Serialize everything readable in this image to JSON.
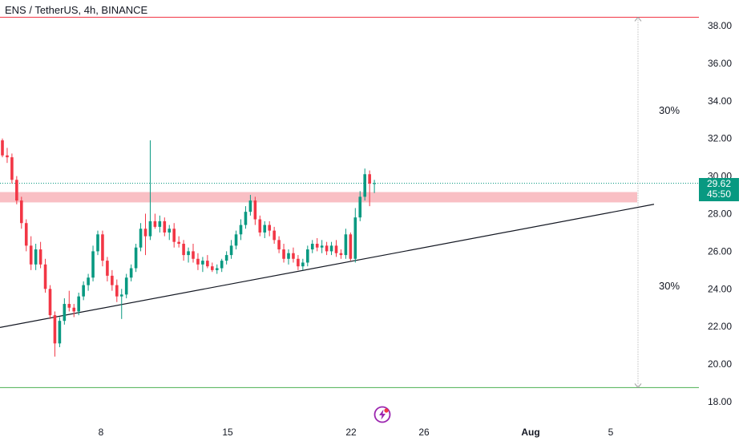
{
  "header": {
    "title": "ENS / TetherUS, 4h, BINANCE"
  },
  "price_tag": {
    "price": "29.62",
    "countdown": "45:50"
  },
  "annotations": {
    "upper_pct": "30%",
    "lower_pct": "30%"
  },
  "colors": {
    "up": "#089981",
    "down": "#f23645",
    "zone": "#f7a9b0",
    "upper_line": "#f23645",
    "lower_line": "#4caf50",
    "dotted": "#9e9e9e"
  },
  "chart_data": {
    "type": "candlestick",
    "title": "ENS / TetherUS, 4h, BINANCE",
    "ylim": [
      17.5,
      39.3
    ],
    "y_ticks": [
      "18.00",
      "20.00",
      "22.00",
      "24.00",
      "26.00",
      "28.00",
      "30.00",
      "32.00",
      "34.00",
      "36.00",
      "38.00"
    ],
    "x_ticks": [
      "8",
      "15",
      "22",
      "26",
      "Aug",
      "5"
    ],
    "current_price": 29.62,
    "levels": {
      "upper": 38.45,
      "lower": 18.75
    },
    "resistance_zone": [
      28.6,
      29.15
    ],
    "trendline": {
      "from": [
        0,
        21.95
      ],
      "to": [
        816,
        28.5
      ]
    },
    "candles": [
      [
        31.9,
        32.0,
        31.0,
        31.1
      ],
      [
        31.1,
        31.5,
        30.7,
        31.0
      ],
      [
        31.0,
        31.2,
        29.6,
        29.8
      ],
      [
        29.8,
        30.0,
        28.5,
        28.7
      ],
      [
        28.7,
        28.9,
        27.2,
        27.5
      ],
      [
        27.5,
        27.7,
        26.0,
        26.3
      ],
      [
        26.3,
        26.8,
        25.0,
        25.3
      ],
      [
        25.3,
        26.4,
        25.0,
        26.1
      ],
      [
        26.1,
        26.5,
        25.1,
        25.3
      ],
      [
        25.3,
        25.6,
        23.8,
        24.0
      ],
      [
        24.0,
        24.2,
        22.4,
        22.6
      ],
      [
        22.6,
        22.8,
        20.4,
        21.1
      ],
      [
        21.1,
        22.5,
        20.9,
        22.3
      ],
      [
        22.3,
        23.5,
        22.1,
        23.2
      ],
      [
        23.2,
        23.9,
        22.8,
        23.0
      ],
      [
        23.0,
        23.2,
        22.5,
        22.8
      ],
      [
        22.8,
        23.8,
        22.6,
        23.6
      ],
      [
        23.6,
        24.4,
        23.4,
        24.2
      ],
      [
        24.2,
        24.8,
        23.9,
        24.6
      ],
      [
        24.6,
        26.3,
        24.4,
        26.0
      ],
      [
        26.0,
        27.1,
        25.8,
        26.9
      ],
      [
        26.9,
        27.1,
        25.2,
        25.5
      ],
      [
        25.5,
        25.7,
        24.4,
        24.7
      ],
      [
        24.7,
        25.0,
        23.9,
        24.2
      ],
      [
        24.2,
        24.5,
        23.3,
        23.6
      ],
      [
        23.6,
        24.0,
        22.4,
        23.7
      ],
      [
        23.7,
        24.8,
        23.5,
        24.6
      ],
      [
        24.6,
        25.3,
        24.4,
        25.1
      ],
      [
        25.1,
        26.4,
        24.9,
        26.2
      ],
      [
        26.2,
        27.5,
        26.0,
        27.2
      ],
      [
        27.2,
        28.0,
        25.8,
        26.8
      ],
      [
        26.8,
        31.9,
        26.6,
        27.6
      ],
      [
        27.6,
        28.0,
        27.2,
        27.3
      ],
      [
        27.3,
        27.9,
        27.0,
        27.6
      ],
      [
        27.6,
        27.8,
        26.8,
        27.0
      ],
      [
        27.0,
        27.4,
        26.6,
        27.2
      ],
      [
        27.2,
        27.5,
        26.2,
        26.5
      ],
      [
        26.5,
        26.8,
        26.2,
        26.4
      ],
      [
        26.4,
        26.6,
        25.5,
        25.8
      ],
      [
        25.8,
        26.2,
        25.4,
        26.0
      ],
      [
        26.0,
        26.4,
        25.4,
        25.6
      ],
      [
        25.6,
        25.9,
        25.0,
        25.3
      ],
      [
        25.3,
        25.7,
        24.9,
        25.5
      ],
      [
        25.5,
        25.8,
        25.1,
        25.2
      ],
      [
        25.2,
        25.4,
        24.9,
        25.0
      ],
      [
        25.0,
        25.3,
        24.8,
        25.1
      ],
      [
        25.1,
        25.6,
        24.9,
        25.5
      ],
      [
        25.5,
        26.0,
        25.3,
        25.8
      ],
      [
        25.8,
        26.6,
        25.6,
        26.3
      ],
      [
        26.3,
        27.1,
        26.1,
        26.9
      ],
      [
        26.9,
        27.7,
        26.6,
        27.4
      ],
      [
        27.4,
        28.4,
        27.2,
        28.1
      ],
      [
        28.1,
        29.0,
        27.9,
        28.7
      ],
      [
        28.7,
        28.9,
        27.4,
        27.7
      ],
      [
        27.7,
        27.9,
        26.8,
        27.0
      ],
      [
        27.0,
        27.6,
        26.7,
        27.4
      ],
      [
        27.4,
        27.6,
        26.8,
        27.1
      ],
      [
        27.1,
        27.3,
        26.4,
        26.6
      ],
      [
        26.6,
        26.8,
        25.9,
        26.1
      ],
      [
        26.1,
        26.4,
        25.4,
        25.6
      ],
      [
        25.6,
        26.1,
        25.3,
        25.9
      ],
      [
        25.9,
        26.2,
        25.4,
        25.6
      ],
      [
        25.6,
        25.8,
        25.0,
        25.2
      ],
      [
        25.2,
        25.6,
        25.0,
        25.4
      ],
      [
        25.4,
        26.3,
        25.2,
        26.1
      ],
      [
        26.1,
        26.6,
        25.9,
        26.4
      ],
      [
        26.4,
        26.7,
        26.0,
        26.2
      ],
      [
        26.2,
        26.6,
        25.9,
        26.3
      ],
      [
        26.3,
        26.5,
        25.8,
        26.0
      ],
      [
        26.0,
        26.5,
        25.8,
        26.3
      ],
      [
        26.3,
        26.6,
        25.7,
        25.9
      ],
      [
        25.9,
        26.1,
        25.6,
        25.8
      ],
      [
        25.8,
        27.2,
        25.6,
        26.9
      ],
      [
        26.9,
        27.0,
        25.5,
        25.6
      ],
      [
        25.6,
        28.3,
        25.4,
        27.8
      ],
      [
        27.8,
        29.2,
        27.6,
        28.9
      ],
      [
        28.9,
        30.4,
        28.7,
        30.1
      ],
      [
        30.1,
        30.3,
        28.4,
        29.6
      ],
      [
        29.6,
        29.8,
        29.1,
        29.62
      ]
    ]
  }
}
